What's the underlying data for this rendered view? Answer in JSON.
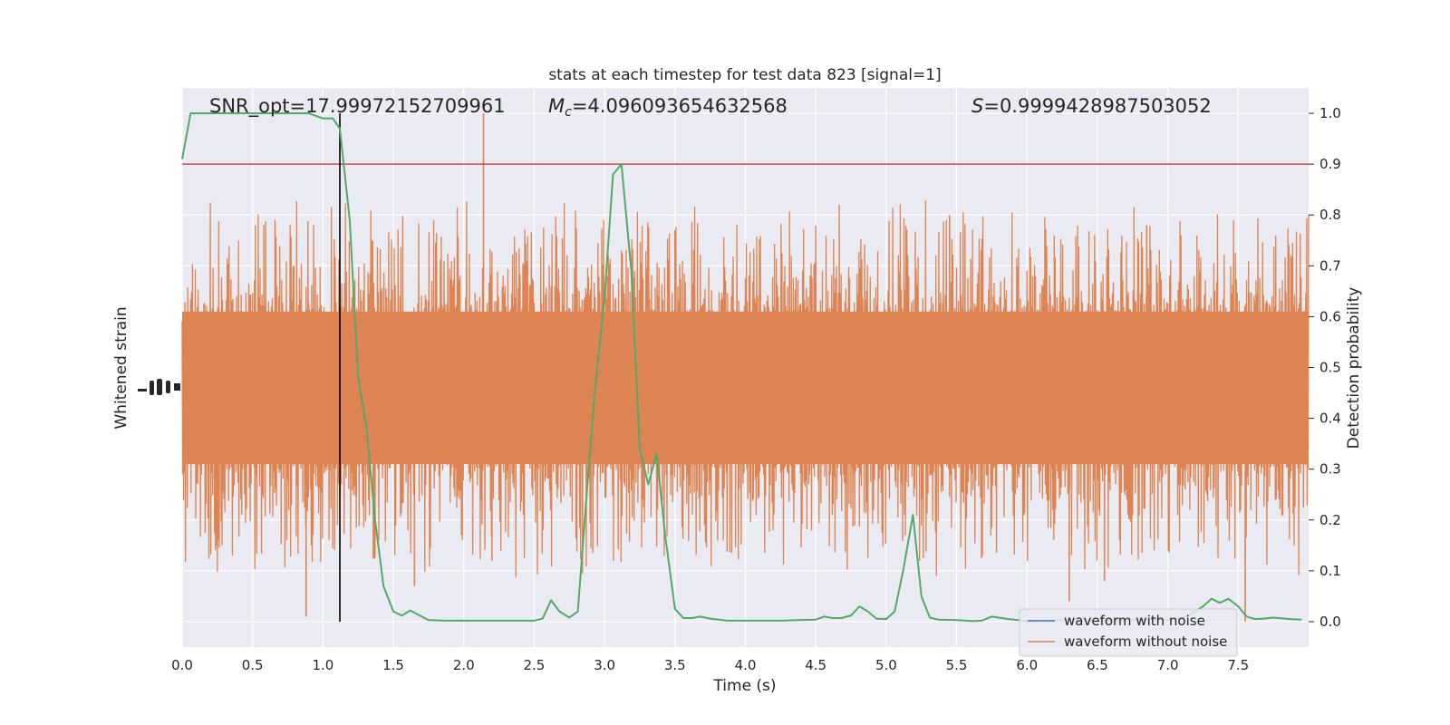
{
  "chart_data": {
    "type": "line",
    "title": "stats at each timestep for test data 823 [signal=1]",
    "xlabel": "Time (s)",
    "ylabel_left": "Whitened strain",
    "ylabel_right": "Detection probability",
    "xlim": [
      0,
      8
    ],
    "ylim_right": [
      -0.05,
      1.05
    ],
    "x_ticks": [
      "0.0",
      "0.5",
      "1.0",
      "1.5",
      "2.0",
      "2.5",
      "3.0",
      "3.5",
      "4.0",
      "4.5",
      "5.0",
      "5.5",
      "6.0",
      "6.5",
      "7.0",
      "7.5"
    ],
    "right_ticks": [
      "0.0",
      "0.1",
      "0.2",
      "0.3",
      "0.4",
      "0.5",
      "0.6",
      "0.7",
      "0.8",
      "0.9",
      "1.0"
    ],
    "grid": true,
    "legend_position": "lower-right",
    "annotations": {
      "snr": "SNR_opt=17.99972152709961",
      "mc_symbol": "M",
      "mc_sub": "c",
      "mc_value": "=4.096093654632568",
      "s_symbol": "S",
      "s_value": "=0.9999428987503052"
    },
    "threshold": 0.9,
    "marker_time": 1.12,
    "series": [
      {
        "name": "waveform with noise",
        "color": "#4c72b0",
        "values": []
      },
      {
        "name": "waveform without noise",
        "color": "#dd8452",
        "band_center": 0.46,
        "band_core_halfwidth": 0.15,
        "spike_peaks": [
          {
            "t": 0.88,
            "v": 0.01
          },
          {
            "t": 0.66,
            "v": 0.79
          },
          {
            "t": 1.35,
            "v": 0.75
          },
          {
            "t": 2.14,
            "v": 1.0
          },
          {
            "t": 2.2,
            "v": 0.12
          },
          {
            "t": 1.65,
            "v": 0.07
          },
          {
            "t": 5.45,
            "v": 0.8
          },
          {
            "t": 6.55,
            "v": 0.08
          },
          {
            "t": 6.3,
            "v": 0.04
          },
          {
            "t": 7.55,
            "v": 0.0
          },
          {
            "t": 6.85,
            "v": 0.78
          },
          {
            "t": 3.5,
            "v": 0.77
          }
        ]
      },
      {
        "name": "detection probability",
        "color": "#55a868",
        "x": [
          0.0,
          0.06,
          0.12,
          0.25,
          0.5,
          0.75,
          0.9,
          1.0,
          1.07,
          1.12,
          1.19,
          1.25,
          1.31,
          1.37,
          1.43,
          1.5,
          1.56,
          1.62,
          1.68,
          1.75,
          1.87,
          2.0,
          2.25,
          2.5,
          2.56,
          2.62,
          2.68,
          2.75,
          2.81,
          2.87,
          2.93,
          3.0,
          3.06,
          3.12,
          3.19,
          3.25,
          3.31,
          3.37,
          3.43,
          3.5,
          3.56,
          3.62,
          3.68,
          3.75,
          3.87,
          4.0,
          4.25,
          4.5,
          4.56,
          4.62,
          4.68,
          4.75,
          4.81,
          4.87,
          4.93,
          5.0,
          5.06,
          5.12,
          5.19,
          5.25,
          5.31,
          5.37,
          5.5,
          5.62,
          5.68,
          5.75,
          5.87,
          6.0,
          6.12,
          6.25,
          6.5,
          6.75,
          7.0,
          7.12,
          7.25,
          7.31,
          7.37,
          7.43,
          7.5,
          7.56,
          7.62,
          7.68,
          7.75,
          7.87,
          7.95
        ],
        "y": [
          0.91,
          1.0,
          1.0,
          1.0,
          1.0,
          1.0,
          1.0,
          0.99,
          0.99,
          0.97,
          0.79,
          0.48,
          0.38,
          0.2,
          0.07,
          0.02,
          0.012,
          0.022,
          0.013,
          0.003,
          0.002,
          0.002,
          0.002,
          0.002,
          0.006,
          0.042,
          0.02,
          0.008,
          0.02,
          0.24,
          0.45,
          0.64,
          0.88,
          0.9,
          0.69,
          0.34,
          0.27,
          0.33,
          0.17,
          0.025,
          0.007,
          0.007,
          0.01,
          0.006,
          0.002,
          0.002,
          0.002,
          0.004,
          0.01,
          0.007,
          0.007,
          0.012,
          0.03,
          0.02,
          0.006,
          0.005,
          0.02,
          0.1,
          0.21,
          0.05,
          0.008,
          0.004,
          0.003,
          0.001,
          0.002,
          0.01,
          0.005,
          0.001,
          0.002,
          0.003,
          0.002,
          0.003,
          0.004,
          0.008,
          0.03,
          0.045,
          0.037,
          0.045,
          0.03,
          0.01,
          0.005,
          0.006,
          0.008,
          0.005,
          0.004
        ]
      }
    ]
  }
}
